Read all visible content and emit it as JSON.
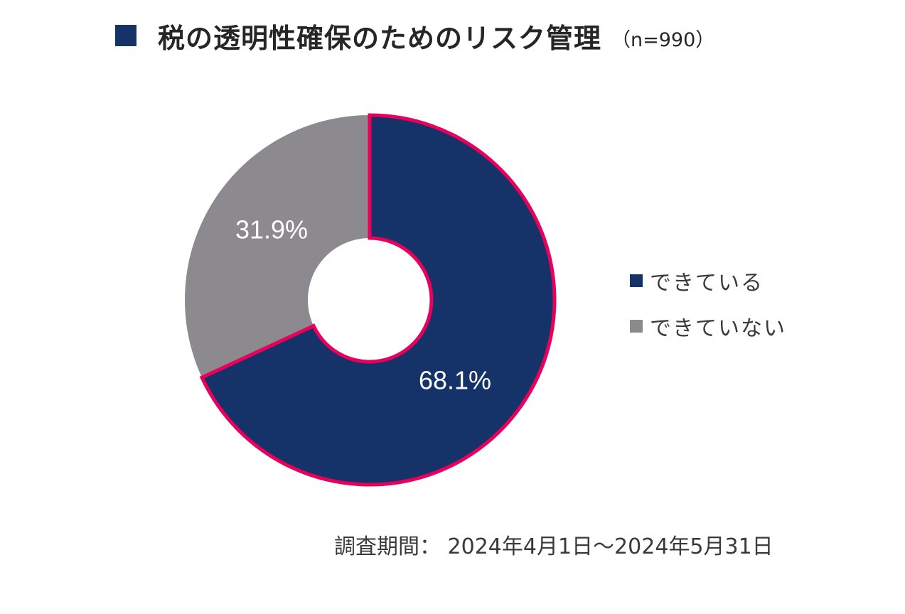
{
  "title": {
    "text": "税の透明性確保のためのリスク管理",
    "sample": "（n=990）"
  },
  "colors": {
    "title_square": "#163369",
    "done": "#163369",
    "not_done": "#8c8a8e",
    "highlight_outline": "#e8005a"
  },
  "chart_data": {
    "type": "pie",
    "variant": "donut",
    "title": "税の透明性確保のためのリスク管理",
    "sample_size": 990,
    "unit": "%",
    "categories": [
      "できている",
      "できていない"
    ],
    "values": [
      68.1,
      31.9
    ],
    "data_labels": [
      "68.1%",
      "31.9%"
    ],
    "colors": [
      "#163369",
      "#8c8a8e"
    ],
    "start_angle": "12 o'clock",
    "direction": "clockwise",
    "highlighted_slice": "できている",
    "legend_position": "right"
  },
  "legend": {
    "items": [
      {
        "label": "できている",
        "color": "#163369"
      },
      {
        "label": "できていない",
        "color": "#8c8a8e"
      }
    ]
  },
  "footer": {
    "period": "調査期間： 2024年4月1日～2024年5月31日"
  }
}
